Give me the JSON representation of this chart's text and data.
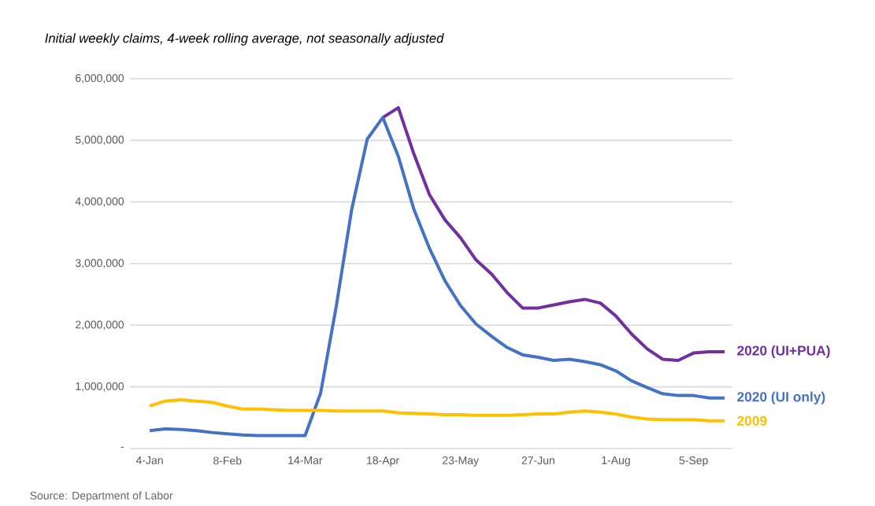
{
  "chart_data": {
    "type": "line",
    "title": "Initial weekly claims, 4-week rolling average, not seasonally adjusted",
    "annotations": [
      "Source: Department of Labor"
    ],
    "categories": [
      "4-Jan",
      null,
      null,
      null,
      null,
      "8-Feb",
      null,
      null,
      null,
      null,
      "14-Mar",
      null,
      null,
      null,
      null,
      "18-Apr",
      null,
      null,
      null,
      null,
      "23-May",
      null,
      null,
      null,
      null,
      "27-Jun",
      null,
      null,
      null,
      null,
      "1-Aug",
      null,
      null,
      null,
      null,
      "5-Sep",
      null,
      null
    ],
    "ylim": [
      0,
      6000000
    ],
    "yticks": [
      {
        "value": 0,
        "label": "-"
      },
      {
        "value": 1000000,
        "label": "1,000,000"
      },
      {
        "value": 2000000,
        "label": "2,000,000"
      },
      {
        "value": 3000000,
        "label": "3,000,000"
      },
      {
        "value": 4000000,
        "label": "4,000,000"
      },
      {
        "value": 5000000,
        "label": "5,000,000"
      },
      {
        "value": 6000000,
        "label": "6,000,000"
      }
    ],
    "grid": "y",
    "series": [
      {
        "name": "2020 (UI+PUA)",
        "color": "#7030a0",
        "values": [
          null,
          null,
          null,
          null,
          null,
          null,
          null,
          null,
          null,
          null,
          null,
          null,
          null,
          null,
          null,
          5370000,
          5530000,
          4780000,
          4120000,
          3710000,
          3420000,
          3060000,
          2830000,
          2530000,
          2280000,
          2280000,
          2330000,
          2380000,
          2420000,
          2360000,
          2150000,
          1860000,
          1620000,
          1450000,
          1430000,
          1550000,
          1570000,
          1570000
        ]
      },
      {
        "name": "2020 (UI only)",
        "color": "#4472c4",
        "values": [
          290000,
          320000,
          310000,
          290000,
          260000,
          240000,
          220000,
          210000,
          210000,
          210000,
          210000,
          900000,
          2300000,
          3880000,
          5020000,
          5370000,
          4740000,
          3880000,
          3250000,
          2720000,
          2320000,
          2020000,
          1820000,
          1640000,
          1520000,
          1480000,
          1430000,
          1450000,
          1410000,
          1360000,
          1260000,
          1100000,
          990000,
          890000,
          860000,
          860000,
          820000,
          820000
        ]
      },
      {
        "name": "2009",
        "color": "#ffc000",
        "values": [
          690000,
          770000,
          790000,
          770000,
          750000,
          690000,
          640000,
          640000,
          630000,
          620000,
          620000,
          620000,
          610000,
          610000,
          610000,
          610000,
          580000,
          570000,
          560000,
          550000,
          550000,
          540000,
          540000,
          540000,
          550000,
          560000,
          560000,
          590000,
          610000,
          590000,
          560000,
          510000,
          480000,
          470000,
          470000,
          470000,
          450000,
          450000
        ]
      }
    ]
  }
}
